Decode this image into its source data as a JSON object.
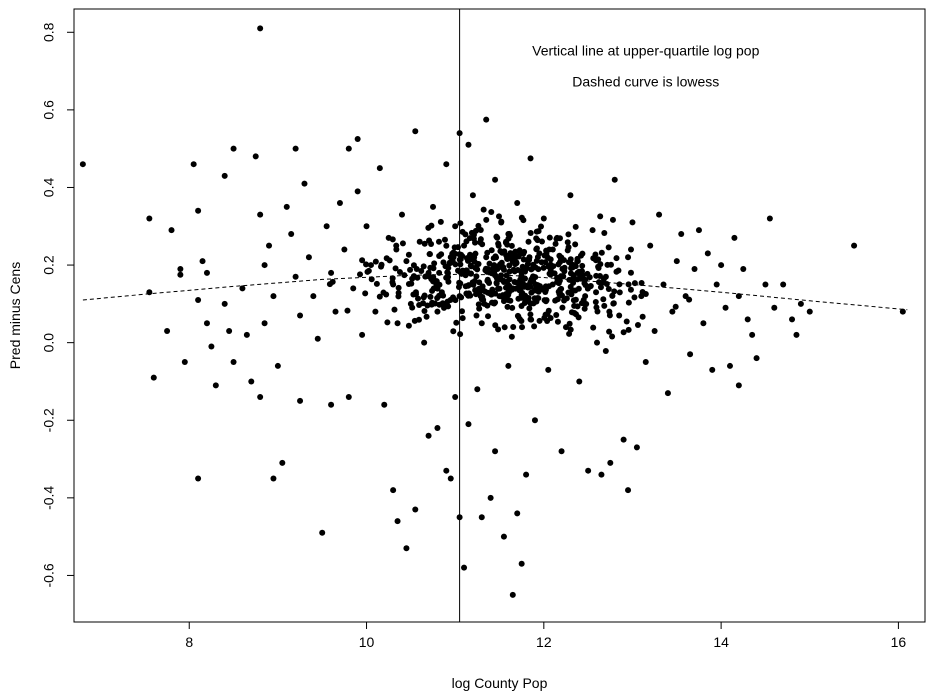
{
  "chart_data": {
    "type": "scatter",
    "title": "",
    "xlabel": "log County Pop",
    "ylabel": "Pred minus Cens",
    "xlim": [
      6.7,
      16.3
    ],
    "ylim": [
      -0.72,
      0.86
    ],
    "x_ticks": [
      8,
      10,
      12,
      14,
      16
    ],
    "x_tick_labels": [
      "8",
      "10",
      "12",
      "14",
      "16"
    ],
    "y_ticks": [
      -0.6,
      -0.4,
      -0.2,
      0.0,
      0.2,
      0.4,
      0.6,
      0.8
    ],
    "y_tick_labels": [
      "-0.6",
      "-0.4",
      "-0.2",
      "0.0",
      "0.2",
      "0.4",
      "0.6",
      "0.8"
    ],
    "grid": false,
    "annotations": [
      {
        "text": "Vertical line at upper-quartile log pop",
        "x": 13.15,
        "y": 0.74
      },
      {
        "text": "Dashed curve is lowess",
        "x": 13.15,
        "y": 0.66
      }
    ],
    "vline": {
      "x": 11.05,
      "style": "solid"
    },
    "lowess": {
      "style": "dashed",
      "x": [
        6.8,
        7.5,
        8.5,
        9.5,
        10.5,
        11.0,
        11.5,
        12.0,
        13.0,
        14.0,
        15.0,
        16.1
      ],
      "y": [
        0.11,
        0.125,
        0.145,
        0.163,
        0.174,
        0.176,
        0.175,
        0.168,
        0.15,
        0.13,
        0.108,
        0.085
      ]
    },
    "points": [
      [
        6.8,
        0.46
      ],
      [
        8.8,
        0.81
      ],
      [
        11.35,
        0.575
      ],
      [
        10.55,
        0.545
      ],
      [
        11.05,
        0.54
      ],
      [
        9.9,
        0.525
      ],
      [
        8.5,
        0.5
      ],
      [
        9.2,
        0.5
      ],
      [
        9.8,
        0.5
      ],
      [
        11.15,
        0.51
      ],
      [
        11.85,
        0.475
      ],
      [
        8.05,
        0.46
      ],
      [
        7.55,
        0.32
      ],
      [
        7.8,
        0.29
      ],
      [
        7.55,
        0.13
      ],
      [
        7.9,
        0.19
      ],
      [
        7.9,
        0.175
      ],
      [
        7.95,
        -0.05
      ],
      [
        7.6,
        -0.09
      ],
      [
        7.75,
        0.03
      ],
      [
        8.1,
        0.34
      ],
      [
        8.15,
        0.21
      ],
      [
        8.2,
        0.18
      ],
      [
        8.1,
        0.11
      ],
      [
        8.2,
        0.05
      ],
      [
        8.25,
        -0.01
      ],
      [
        8.3,
        -0.11
      ],
      [
        8.1,
        -0.35
      ],
      [
        8.4,
        0.43
      ],
      [
        8.4,
        0.1
      ],
      [
        8.45,
        0.03
      ],
      [
        8.5,
        -0.05
      ],
      [
        8.6,
        0.14
      ],
      [
        8.65,
        0.02
      ],
      [
        8.7,
        -0.1
      ],
      [
        8.75,
        0.48
      ],
      [
        8.8,
        0.33
      ],
      [
        8.85,
        0.2
      ],
      [
        8.85,
        0.05
      ],
      [
        8.8,
        -0.14
      ],
      [
        8.9,
        0.25
      ],
      [
        8.95,
        0.12
      ],
      [
        8.95,
        -0.35
      ],
      [
        9.0,
        -0.06
      ],
      [
        9.05,
        -0.31
      ],
      [
        9.1,
        0.35
      ],
      [
        9.15,
        0.28
      ],
      [
        9.2,
        0.17
      ],
      [
        9.25,
        0.07
      ],
      [
        9.25,
        -0.15
      ],
      [
        9.3,
        0.41
      ],
      [
        9.35,
        0.22
      ],
      [
        9.4,
        0.12
      ],
      [
        9.45,
        0.01
      ],
      [
        9.5,
        -0.49
      ],
      [
        9.55,
        0.3
      ],
      [
        9.6,
        0.18
      ],
      [
        9.6,
        -0.16
      ],
      [
        9.65,
        0.08
      ],
      [
        9.7,
        0.36
      ],
      [
        9.75,
        0.24
      ],
      [
        9.8,
        -0.14
      ],
      [
        9.85,
        0.14
      ],
      [
        9.9,
        0.39
      ],
      [
        9.95,
        0.02
      ],
      [
        10.0,
        0.3
      ],
      [
        10.05,
        0.2
      ],
      [
        10.1,
        0.08
      ],
      [
        10.15,
        0.45
      ],
      [
        10.2,
        -0.16
      ],
      [
        10.25,
        0.27
      ],
      [
        10.3,
        0.15
      ],
      [
        10.3,
        -0.38
      ],
      [
        10.35,
        0.05
      ],
      [
        10.35,
        -0.46
      ],
      [
        10.4,
        0.33
      ],
      [
        10.45,
        -0.53
      ],
      [
        10.45,
        0.21
      ],
      [
        10.5,
        0.1
      ],
      [
        10.55,
        -0.43
      ],
      [
        10.6,
        0.26
      ],
      [
        10.65,
        0.0
      ],
      [
        10.7,
        0.18
      ],
      [
        10.7,
        -0.24
      ],
      [
        10.75,
        0.35
      ],
      [
        10.8,
        0.08
      ],
      [
        10.8,
        -0.22
      ],
      [
        10.85,
        0.13
      ],
      [
        10.9,
        -0.33
      ],
      [
        10.9,
        0.46
      ],
      [
        10.95,
        -0.35
      ],
      [
        10.95,
        0.22
      ],
      [
        11.0,
        0.3
      ],
      [
        11.0,
        -0.14
      ],
      [
        11.05,
        0.12
      ],
      [
        11.05,
        -0.45
      ],
      [
        11.1,
        -0.58
      ],
      [
        11.1,
        0.25
      ],
      [
        11.15,
        -0.21
      ],
      [
        11.2,
        0.38
      ],
      [
        11.2,
        0.15
      ],
      [
        11.25,
        -0.12
      ],
      [
        11.3,
        0.05
      ],
      [
        11.3,
        -0.45
      ],
      [
        11.35,
        0.22
      ],
      [
        11.4,
        -0.4
      ],
      [
        11.45,
        0.42
      ],
      [
        11.45,
        -0.28
      ],
      [
        11.5,
        0.12
      ],
      [
        11.55,
        -0.5
      ],
      [
        11.6,
        0.28
      ],
      [
        11.6,
        -0.06
      ],
      [
        11.65,
        -0.65
      ],
      [
        11.7,
        0.36
      ],
      [
        11.7,
        -0.44
      ],
      [
        11.75,
        0.18
      ],
      [
        11.75,
        -0.57
      ],
      [
        11.8,
        -0.34
      ],
      [
        11.85,
        0.06
      ],
      [
        11.9,
        -0.2
      ],
      [
        11.95,
        0.23
      ],
      [
        12.0,
        0.32
      ],
      [
        12.05,
        -0.07
      ],
      [
        12.1,
        0.15
      ],
      [
        12.15,
        0.27
      ],
      [
        12.2,
        -0.28
      ],
      [
        12.25,
        0.04
      ],
      [
        12.3,
        0.38
      ],
      [
        12.35,
        0.2
      ],
      [
        12.4,
        -0.1
      ],
      [
        12.45,
        0.11
      ],
      [
        12.5,
        -0.33
      ],
      [
        12.55,
        0.29
      ],
      [
        12.6,
        0.0
      ],
      [
        12.65,
        -0.34
      ],
      [
        12.7,
        0.17
      ],
      [
        12.75,
        -0.31
      ],
      [
        12.8,
        0.42
      ],
      [
        12.85,
        0.07
      ],
      [
        12.9,
        -0.25
      ],
      [
        12.95,
        0.22
      ],
      [
        12.95,
        -0.38
      ],
      [
        13.0,
        0.31
      ],
      [
        13.05,
        -0.27
      ],
      [
        13.1,
        0.12
      ],
      [
        13.15,
        -0.05
      ],
      [
        13.2,
        0.25
      ],
      [
        13.25,
        0.03
      ],
      [
        13.3,
        0.33
      ],
      [
        13.35,
        0.15
      ],
      [
        13.4,
        -0.13
      ],
      [
        13.45,
        0.08
      ],
      [
        13.5,
        0.21
      ],
      [
        13.55,
        0.28
      ],
      [
        13.6,
        0.12
      ],
      [
        13.65,
        -0.03
      ],
      [
        13.7,
        0.19
      ],
      [
        13.75,
        0.29
      ],
      [
        13.8,
        0.05
      ],
      [
        13.85,
        0.23
      ],
      [
        13.9,
        -0.07
      ],
      [
        13.95,
        0.15
      ],
      [
        14.0,
        0.2
      ],
      [
        14.05,
        0.09
      ],
      [
        14.1,
        -0.06
      ],
      [
        14.15,
        0.27
      ],
      [
        14.2,
        0.12
      ],
      [
        14.2,
        -0.11
      ],
      [
        14.25,
        0.19
      ],
      [
        14.3,
        0.06
      ],
      [
        14.35,
        0.02
      ],
      [
        14.4,
        -0.04
      ],
      [
        14.5,
        0.15
      ],
      [
        14.55,
        0.32
      ],
      [
        14.6,
        0.09
      ],
      [
        14.7,
        0.15
      ],
      [
        14.8,
        0.06
      ],
      [
        14.85,
        0.02
      ],
      [
        14.9,
        0.1
      ],
      [
        15.0,
        0.08
      ],
      [
        15.5,
        0.25
      ],
      [
        16.05,
        0.08
      ]
    ],
    "dense_cluster": {
      "x_center": 11.6,
      "x_spread": 1.45,
      "y_center": 0.17,
      "y_spread": 0.095,
      "count": 620
    }
  }
}
